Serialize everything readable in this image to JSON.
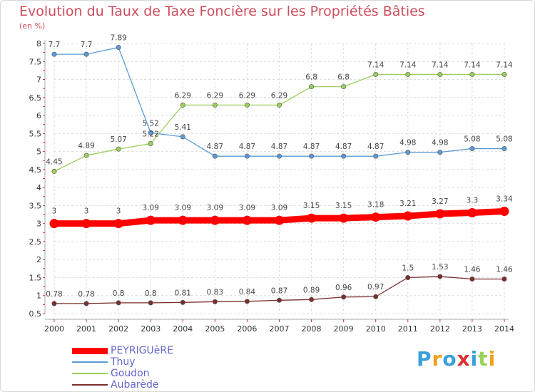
{
  "chart_data": {
    "type": "line",
    "title": "Evolution du Taux de Taxe Foncière sur les Propriétés Bâties",
    "subtitle": "(en %)",
    "xlabel": "",
    "ylabel": "",
    "categories": [
      "2000",
      "2001",
      "2002",
      "2003",
      "2004",
      "2005",
      "2006",
      "2007",
      "2008",
      "2009",
      "2010",
      "2011",
      "2012",
      "2013",
      "2014"
    ],
    "ylim": [
      0.5,
      8
    ],
    "yticks": [
      "0.5",
      "1",
      "1.5",
      "2",
      "2.5",
      "3",
      "3.5",
      "4",
      "4.5",
      "5",
      "5.5",
      "6",
      "6.5",
      "7",
      "7.5",
      "8"
    ],
    "legend_position": "bottom-left",
    "series": [
      {
        "name": "PEYRIGUèRE",
        "color": "#ff0000",
        "values": [
          3,
          3,
          3,
          3.09,
          3.09,
          3.09,
          3.09,
          3.09,
          3.15,
          3.15,
          3.18,
          3.21,
          3.27,
          3.3,
          3.34
        ],
        "labels": [
          "3",
          "3",
          "3",
          "3.09",
          "3.09",
          "3.09",
          "3.09",
          "3.09",
          "3.15",
          "3.15",
          "3.18",
          "3.21",
          "3.27",
          "3.3",
          "3.34"
        ]
      },
      {
        "name": "Thuy",
        "color": "#5b9bd5",
        "values": [
          7.7,
          7.7,
          7.89,
          5.52,
          5.41,
          4.87,
          4.87,
          4.87,
          4.87,
          4.87,
          4.87,
          4.98,
          4.98,
          5.08,
          5.08
        ],
        "labels": [
          "7.7",
          "7.7",
          "7.89",
          "5.52",
          "5.41",
          "4.87",
          "4.87",
          "4.87",
          "4.87",
          "4.87",
          "4.87",
          "4.98",
          "4.98",
          "5.08",
          "5.08"
        ]
      },
      {
        "name": "Goudon",
        "color": "#9bcf5a",
        "values": [
          4.45,
          4.89,
          5.07,
          5.22,
          6.29,
          6.29,
          6.29,
          6.29,
          6.8,
          6.8,
          7.14,
          7.14,
          7.14,
          7.14,
          7.14
        ],
        "labels": [
          "4.45",
          "4.89",
          "5.07",
          "5.22",
          "6.29",
          "6.29",
          "6.29",
          "6.29",
          "6.8",
          "6.8",
          "7.14",
          "7.14",
          "7.14",
          "7.14",
          "7.14"
        ]
      },
      {
        "name": "Aubarède",
        "color": "#7a2e2e",
        "values": [
          0.78,
          0.78,
          0.8,
          0.8,
          0.81,
          0.83,
          0.84,
          0.87,
          0.89,
          0.96,
          0.97,
          1.5,
          1.53,
          1.46,
          1.46
        ],
        "labels": [
          "0.78",
          "0.78",
          "0.8",
          "0.8",
          "0.81",
          "0.83",
          "0.84",
          "0.87",
          "0.89",
          "0.96",
          "0.97",
          "1.5",
          "1.53",
          "1.46",
          "1.46"
        ]
      }
    ],
    "watermark": "Proxiti"
  }
}
